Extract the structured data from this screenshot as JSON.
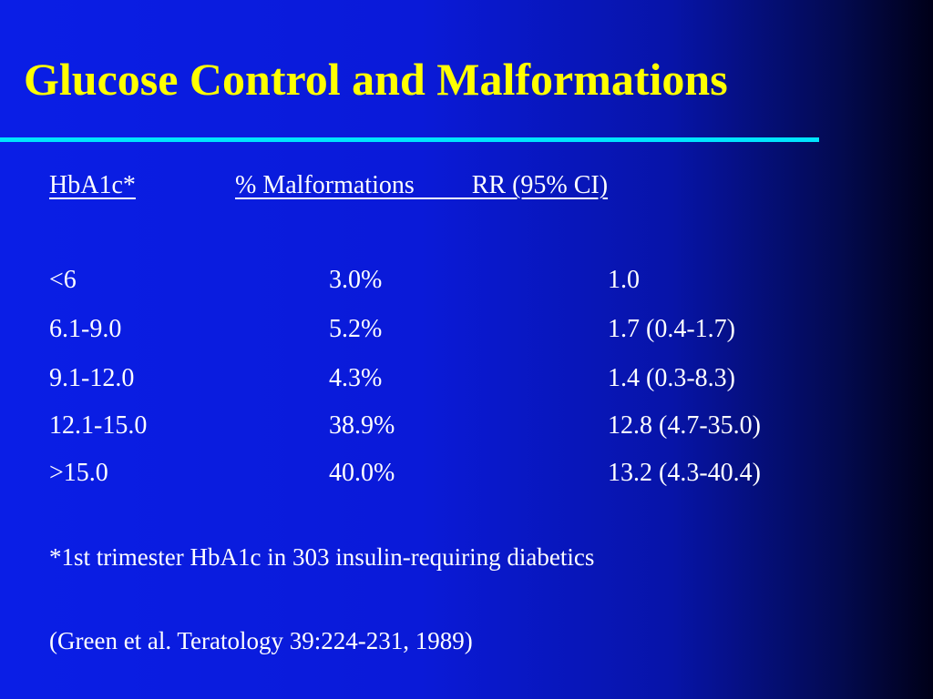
{
  "title": "Glucose Control and Malformations",
  "colors": {
    "title": "#ffff00",
    "rule": "#00e5ff",
    "text": "#ffffff",
    "background_left": "#0a1ee6",
    "background_right": "#000018"
  },
  "table": {
    "headers": {
      "hba1c": "HbA1c*",
      "malformations_and_rr": "% Malformations         RR (95% CI)"
    },
    "rows": [
      {
        "hba1c": "<6",
        "malformations": "3.0%",
        "rr": "1.0"
      },
      {
        "hba1c": "6.1-9.0",
        "malformations": "5.2%",
        "rr": "1.7 (0.4-1.7)"
      },
      {
        "hba1c": "9.1-12.0",
        "malformations": "4.3%",
        "rr": "1.4 (0.3-8.3)"
      },
      {
        "hba1c": "12.1-15.0",
        "malformations": "38.9%",
        "rr": "12.8 (4.7-35.0)"
      },
      {
        "hba1c": ">15.0",
        "malformations": "40.0%",
        "rr": "13.2 (4.3-40.4)"
      }
    ]
  },
  "footnote": "*1st trimester HbA1c in 303 insulin-requiring diabetics",
  "citation": "(Green et al. Teratology 39:224-231, 1989)"
}
